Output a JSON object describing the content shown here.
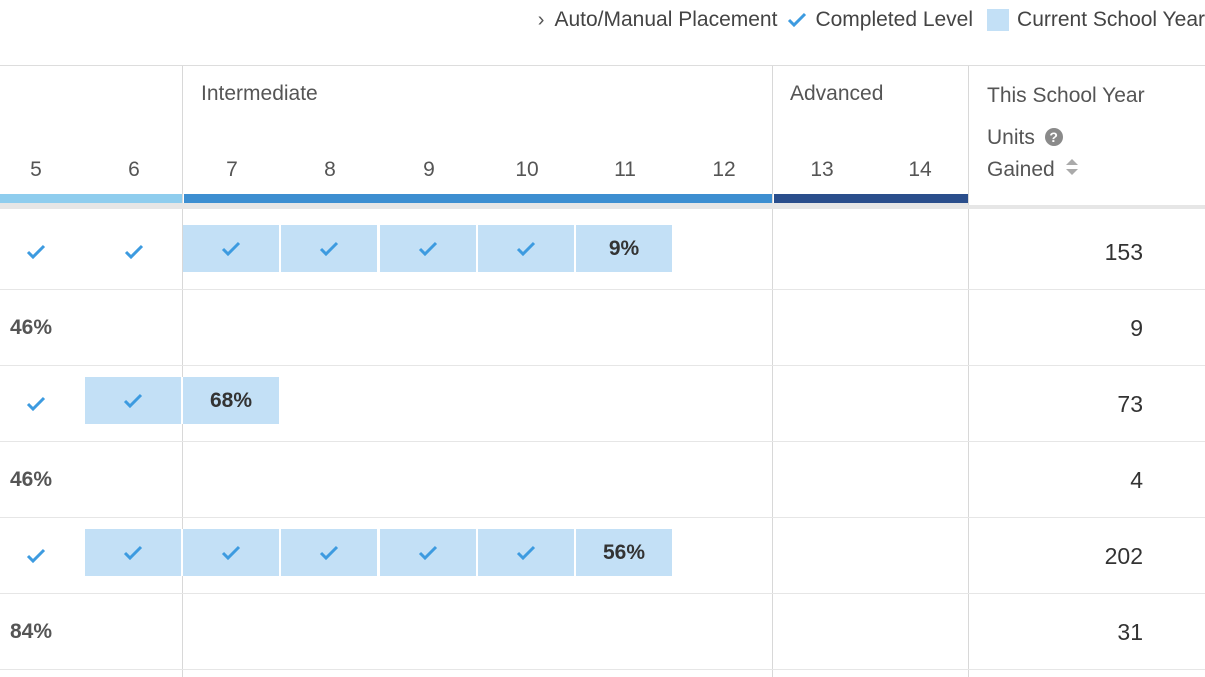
{
  "legend": {
    "placement_label": "Auto/Manual Placement",
    "completed_label": "Completed Level",
    "current_label": "Current School Year"
  },
  "groups": {
    "intermediate": "Intermediate",
    "advanced": "Advanced"
  },
  "columns": [
    "5",
    "6",
    "7",
    "8",
    "9",
    "10",
    "11",
    "12",
    "13",
    "14"
  ],
  "units_header": {
    "title": "This School Year",
    "line1": "Units",
    "line2": "Gained"
  },
  "colors": {
    "current_fill": "#c3e0f6",
    "check": "#3d9be0",
    "beginner_bar": "#8fcdee",
    "intermediate_bar": "#3d8fd1",
    "advanced_bar": "#2a4e8c"
  },
  "rows": [
    {
      "units": "153",
      "cells": [
        "check",
        "check-fill",
        "check-fill",
        "check-fill",
        "check-fill",
        "check-fill",
        "9%",
        "",
        "",
        ""
      ],
      "filled": [
        false,
        false,
        true,
        true,
        true,
        true,
        true,
        false,
        false,
        false
      ]
    },
    {
      "units": "9",
      "lead": "46%"
    },
    {
      "units": "73",
      "cells": [
        "check",
        "check",
        "68%",
        "",
        "",
        "",
        "",
        "",
        "",
        ""
      ],
      "filled": [
        false,
        true,
        true,
        false,
        false,
        false,
        false,
        false,
        false,
        false
      ]
    },
    {
      "units": "4",
      "lead": "46%"
    },
    {
      "units": "202",
      "cells": [
        "check",
        "check",
        "check",
        "check",
        "check",
        "check",
        "56%",
        "",
        "",
        ""
      ],
      "filled": [
        false,
        true,
        true,
        true,
        true,
        true,
        true,
        false,
        false,
        false
      ]
    },
    {
      "units": "31",
      "lead": "84%"
    }
  ]
}
